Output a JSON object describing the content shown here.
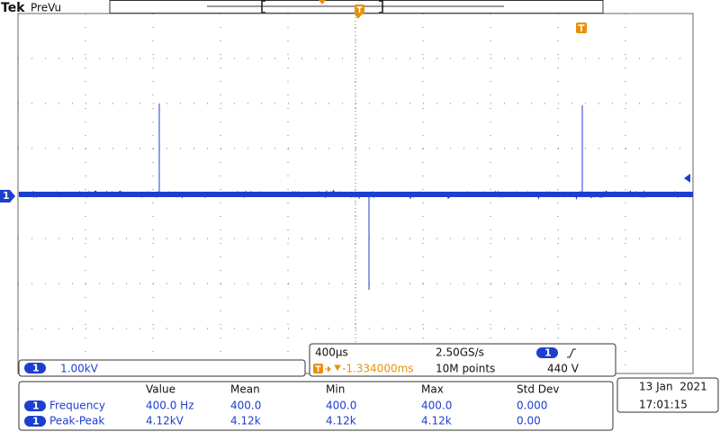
{
  "header": {
    "brand": "Tek",
    "mode": "PreVu"
  },
  "channel": {
    "number": "1",
    "scale": "1.00kV"
  },
  "timebase": {
    "scale": "400µs",
    "sample_rate": "2.50GS/s",
    "trigger_channel": "1",
    "trigger_position": "-1.334000ms",
    "record_length": "10M points",
    "trigger_level": "440 V"
  },
  "measurements": {
    "columns": [
      "Value",
      "Mean",
      "Min",
      "Max",
      "Std Dev"
    ],
    "rows": [
      {
        "channel": "1",
        "name": "Frequency",
        "cells": [
          "400.0 Hz",
          "400.0",
          "400.0",
          "400.0",
          "0.000"
        ]
      },
      {
        "channel": "1",
        "name": "Peak-Peak",
        "cells": [
          "4.12kV",
          "4.12k",
          "4.12k",
          "4.12k",
          "0.00"
        ]
      }
    ]
  },
  "datetime": {
    "date": "13 Jan  2021",
    "time": "17:01:15"
  }
}
